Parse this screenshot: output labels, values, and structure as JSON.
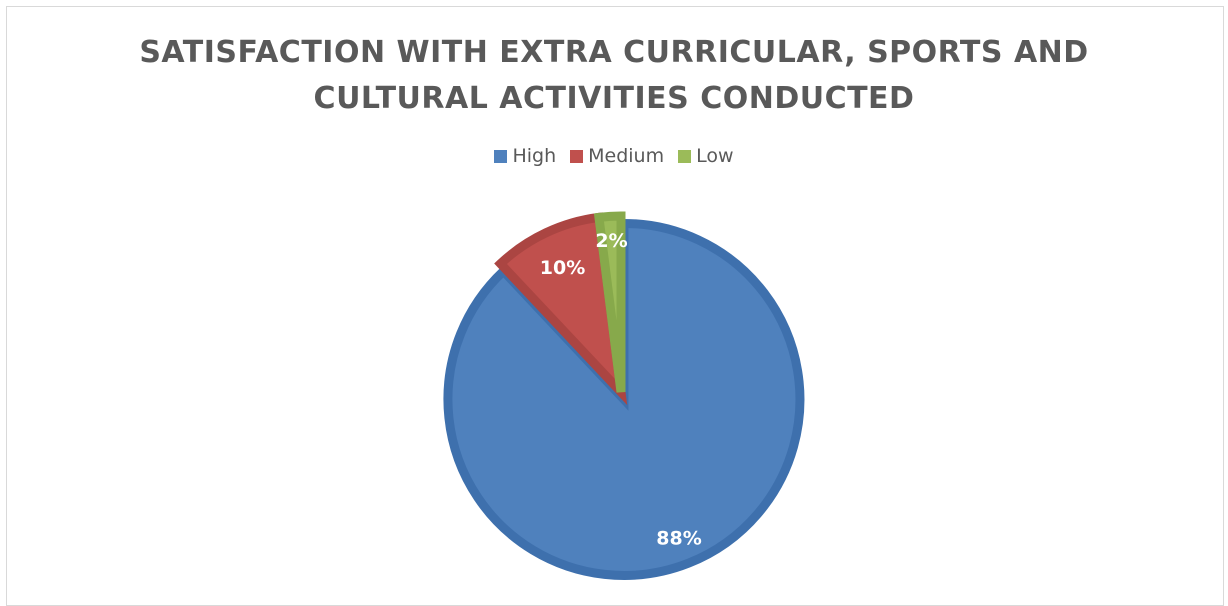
{
  "chart_data": {
    "type": "pie",
    "title_lines": [
      "SATISFACTION WITH EXTRA CURRICULAR, SPORTS AND",
      "CULTURAL ACTIVITIES CONDUCTED"
    ],
    "categories": [
      "High",
      "Medium",
      "Low"
    ],
    "values": [
      88,
      10,
      2
    ],
    "labels": [
      "88%",
      "10%",
      "2%"
    ],
    "colors": [
      "#4f81bd",
      "#c0504d",
      "#9bbb59"
    ],
    "border_colors": [
      "#3e70ad",
      "#ab4542",
      "#87a94b"
    ],
    "label_colors": [
      "#ffffff",
      "#ffffff",
      "#ffffff"
    ],
    "legend": "top",
    "exploded_category": "High"
  }
}
